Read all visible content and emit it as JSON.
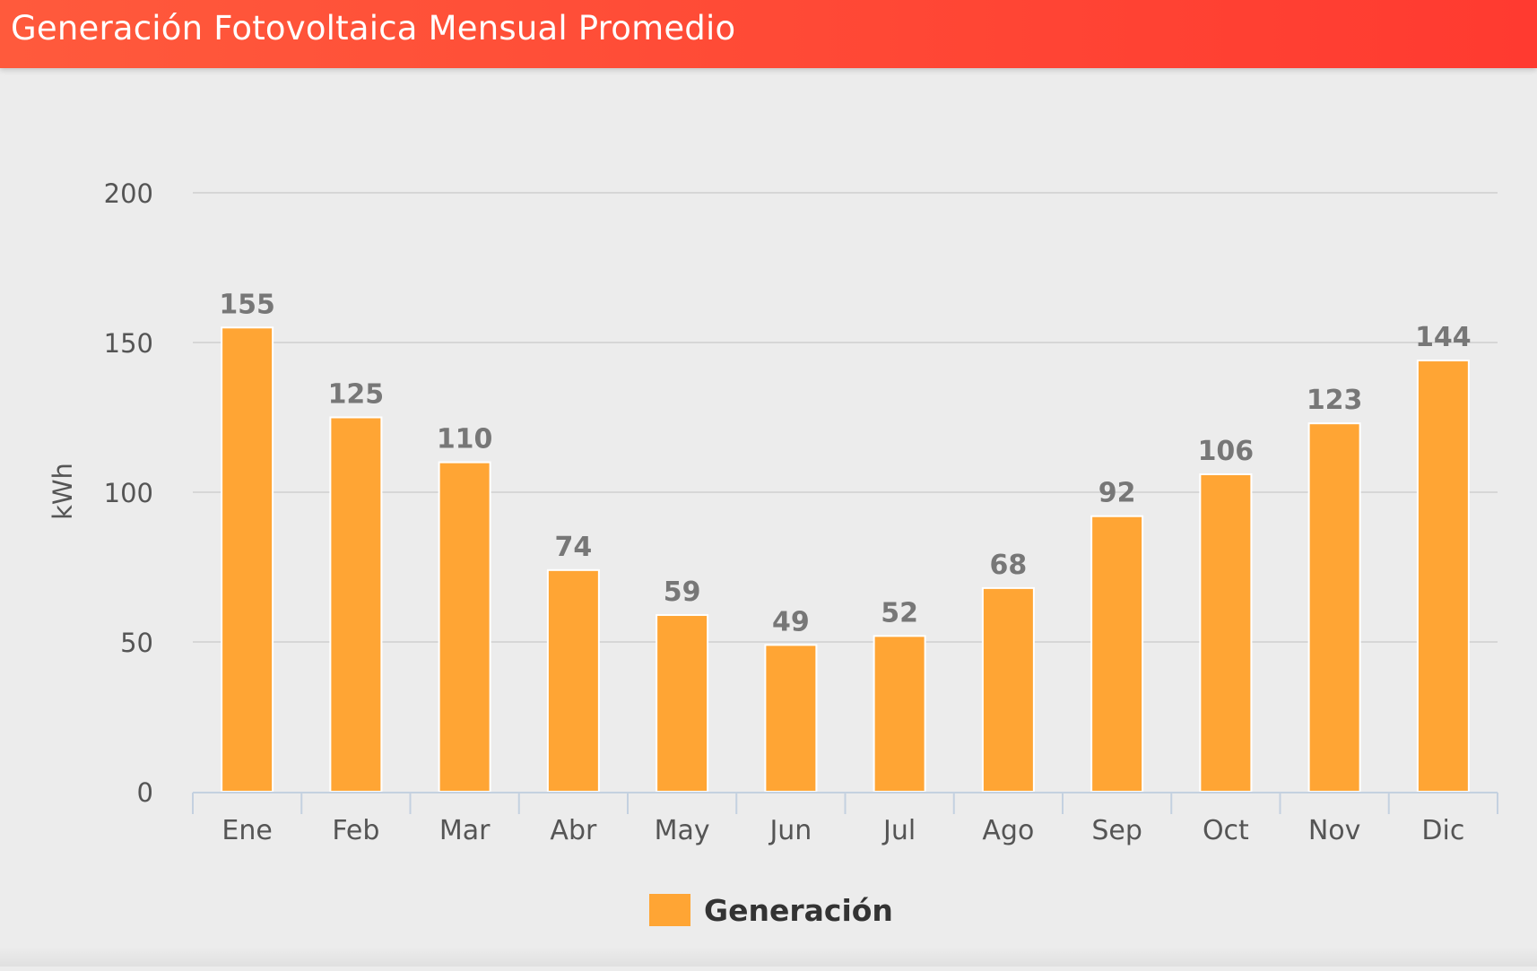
{
  "header": {
    "title": "Generación Fotovoltaica Mensual Promedio"
  },
  "colors": {
    "header": "#ff4a36",
    "bar": "#ffa534",
    "bar_border": "#ffffff",
    "grid": "#d6d6d6",
    "axis": "#c4d1e0",
    "tick_label": "#555555",
    "data_label": "#777777",
    "legend_text": "#333333"
  },
  "chart_data": {
    "type": "bar",
    "title": "",
    "xlabel": "",
    "ylabel": "kWh",
    "ylim": [
      0,
      200
    ],
    "yticks": [
      0,
      50,
      100,
      150,
      200
    ],
    "grid": true,
    "legend_position": "bottom-center",
    "categories": [
      "Ene",
      "Feb",
      "Mar",
      "Abr",
      "May",
      "Jun",
      "Jul",
      "Ago",
      "Sep",
      "Oct",
      "Nov",
      "Dic"
    ],
    "series": [
      {
        "name": "Generación",
        "values": [
          155,
          125,
          110,
          74,
          59,
          49,
          52,
          68,
          92,
          106,
          123,
          144
        ]
      }
    ]
  }
}
